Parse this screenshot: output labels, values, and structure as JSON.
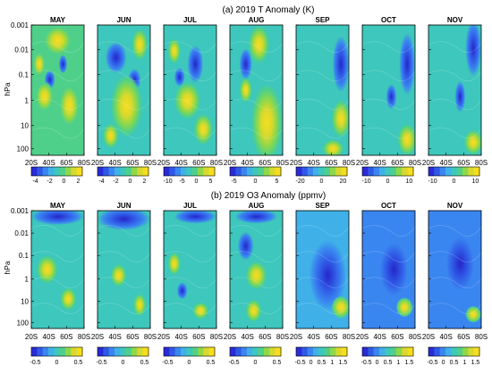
{
  "chart_data": [
    {
      "type": "heatmap",
      "title": "(a) 2019 T Anomaly (K)",
      "ylabel": "hPa",
      "y_ticks": [
        "0.001",
        "0.01",
        "0.1",
        "1",
        "10",
        "100"
      ],
      "x_ticks": [
        "20S",
        "40S",
        "60S",
        "80S"
      ],
      "x_range": [
        20,
        80
      ],
      "y_range_hPa": [
        200,
        0.001
      ],
      "y_scale": "log",
      "palette": [
        "#2a2ad6",
        "#2f58e6",
        "#3a86f0",
        "#3fb1e8",
        "#3ec7bc",
        "#4fd08a",
        "#8fd84a",
        "#d7d92e",
        "#f6de1e"
      ],
      "panels": [
        {
          "month": "MAY",
          "colorbar_ticks": [
            "-4",
            "-2",
            "0",
            "2"
          ],
          "hot_spots": [
            [
              0.5,
              0.12,
              0.28,
              0.1
            ],
            [
              0.25,
              0.55,
              0.18,
              0.1
            ],
            [
              0.72,
              0.62,
              0.2,
              0.14
            ],
            [
              0.15,
              0.3,
              0.12,
              0.08
            ]
          ],
          "cold_spots": [
            [
              0.35,
              0.42,
              0.1,
              0.06
            ],
            [
              0.6,
              0.3,
              0.08,
              0.06
            ]
          ],
          "base": 0.58
        },
        {
          "month": "JUN",
          "colorbar_ticks": [
            "-4",
            "-2",
            "0",
            "2"
          ],
          "hot_spots": [
            [
              0.55,
              0.62,
              0.3,
              0.2
            ],
            [
              0.8,
              0.15,
              0.15,
              0.1
            ],
            [
              0.25,
              0.85,
              0.15,
              0.08
            ]
          ],
          "cold_spots": [
            [
              0.35,
              0.25,
              0.2,
              0.1
            ],
            [
              0.7,
              0.42,
              0.12,
              0.07
            ]
          ],
          "base": 0.55
        },
        {
          "month": "JUL",
          "colorbar_ticks": [
            "-10",
            "-5",
            "0",
            "5"
          ],
          "hot_spots": [
            [
              0.45,
              0.58,
              0.25,
              0.12
            ],
            [
              0.75,
              0.8,
              0.18,
              0.1
            ],
            [
              0.2,
              0.2,
              0.12,
              0.08
            ]
          ],
          "cold_spots": [
            [
              0.6,
              0.3,
              0.15,
              0.12
            ],
            [
              0.3,
              0.4,
              0.1,
              0.06
            ]
          ],
          "base": 0.55
        },
        {
          "month": "AUG",
          "colorbar_ticks": [
            "-5",
            "0",
            "5"
          ],
          "hot_spots": [
            [
              0.7,
              0.75,
              0.3,
              0.25
            ],
            [
              0.55,
              0.15,
              0.2,
              0.12
            ],
            [
              0.3,
              0.5,
              0.12,
              0.08
            ]
          ],
          "cold_spots": [
            [
              0.3,
              0.3,
              0.12,
              0.1
            ]
          ],
          "base": 0.55
        },
        {
          "month": "SEP",
          "colorbar_ticks": [
            "-20",
            "0",
            "20"
          ],
          "hot_spots": [
            [
              0.85,
              0.72,
              0.18,
              0.12
            ],
            [
              0.7,
              0.95,
              0.2,
              0.06
            ]
          ],
          "cold_spots": [
            [
              0.85,
              0.3,
              0.16,
              0.18
            ]
          ],
          "base": 0.45
        },
        {
          "month": "OCT",
          "colorbar_ticks": [
            "-10",
            "0",
            "10"
          ],
          "hot_spots": [
            [
              0.85,
              0.88,
              0.18,
              0.1
            ]
          ],
          "cold_spots": [
            [
              0.85,
              0.3,
              0.15,
              0.2
            ],
            [
              0.55,
              0.55,
              0.1,
              0.08
            ]
          ],
          "base": 0.45
        },
        {
          "month": "NOV",
          "colorbar_ticks": [
            "-10",
            "0",
            "10"
          ],
          "hot_spots": [
            [
              0.85,
              0.9,
              0.18,
              0.08
            ]
          ],
          "cold_spots": [
            [
              0.85,
              0.18,
              0.15,
              0.18
            ],
            [
              0.6,
              0.55,
              0.1,
              0.1
            ]
          ],
          "base": 0.48
        }
      ]
    },
    {
      "type": "heatmap",
      "title": "(b) 2019 O3 Anomaly (ppmv)",
      "ylabel": "hPa",
      "y_ticks": [
        "0.001",
        "0.01",
        "0.1",
        "1",
        "10",
        "100"
      ],
      "x_ticks": [
        "20S",
        "40S",
        "60S",
        "80S"
      ],
      "x_range": [
        20,
        80
      ],
      "y_range_hPa": [
        200,
        0.001
      ],
      "y_scale": "log",
      "palette": [
        "#2a2ad6",
        "#2f58e6",
        "#3a86f0",
        "#3fb1e8",
        "#3ec7bc",
        "#4fd08a",
        "#8fd84a",
        "#d7d92e",
        "#f6de1e"
      ],
      "panels": [
        {
          "month": "MAY",
          "colorbar_ticks": [
            "-0.5",
            "0",
            "0.5"
          ],
          "hot_spots": [
            [
              0.3,
              0.5,
              0.2,
              0.1
            ],
            [
              0.7,
              0.75,
              0.15,
              0.08
            ]
          ],
          "cold_spots": [
            [
              0.5,
              0.05,
              0.5,
              0.06
            ]
          ],
          "base": 0.45
        },
        {
          "month": "JUN",
          "colorbar_ticks": [
            "-0.5",
            "0",
            "0.5"
          ],
          "hot_spots": [
            [
              0.4,
              0.55,
              0.15,
              0.08
            ],
            [
              0.8,
              0.8,
              0.12,
              0.08
            ]
          ],
          "cold_spots": [
            [
              0.5,
              0.07,
              0.5,
              0.08
            ]
          ],
          "base": 0.44
        },
        {
          "month": "JUL",
          "colorbar_ticks": [
            "-0.5",
            "0",
            "0.5"
          ],
          "hot_spots": [
            [
              0.2,
              0.45,
              0.12,
              0.08
            ],
            [
              0.7,
              0.85,
              0.15,
              0.06
            ]
          ],
          "cold_spots": [
            [
              0.35,
              0.68,
              0.1,
              0.06
            ],
            [
              0.6,
              0.05,
              0.4,
              0.05
            ]
          ],
          "base": 0.44
        },
        {
          "month": "AUG",
          "colorbar_ticks": [
            "-0.5",
            "0",
            "0.5"
          ],
          "hot_spots": [
            [
              0.5,
              0.55,
              0.2,
              0.1
            ],
            [
              0.45,
              0.85,
              0.15,
              0.08
            ]
          ],
          "cold_spots": [
            [
              0.3,
              0.3,
              0.15,
              0.1
            ],
            [
              0.5,
              0.05,
              0.4,
              0.05
            ]
          ],
          "base": 0.46
        },
        {
          "month": "SEP",
          "colorbar_ticks": [
            "-0.5",
            "0",
            "0.5",
            "1",
            "1.5"
          ],
          "hot_spots": [
            [
              0.85,
              0.82,
              0.18,
              0.08
            ]
          ],
          "cold_spots": [
            [
              0.6,
              0.55,
              0.35,
              0.25
            ]
          ],
          "base": 0.32
        },
        {
          "month": "OCT",
          "colorbar_ticks": [
            "-0.5",
            "0",
            "0.5",
            "1",
            "1.5"
          ],
          "hot_spots": [
            [
              0.8,
              0.82,
              0.16,
              0.07
            ]
          ],
          "cold_spots": [
            [
              0.6,
              0.5,
              0.35,
              0.25
            ]
          ],
          "base": 0.3
        },
        {
          "month": "NOV",
          "colorbar_ticks": [
            "-0.5",
            "0",
            "0.5",
            "1",
            "1.5"
          ],
          "hot_spots": [
            [
              0.85,
              0.88,
              0.15,
              0.06
            ]
          ],
          "cold_spots": [
            [
              0.6,
              0.45,
              0.35,
              0.25
            ]
          ],
          "base": 0.3
        }
      ]
    }
  ]
}
